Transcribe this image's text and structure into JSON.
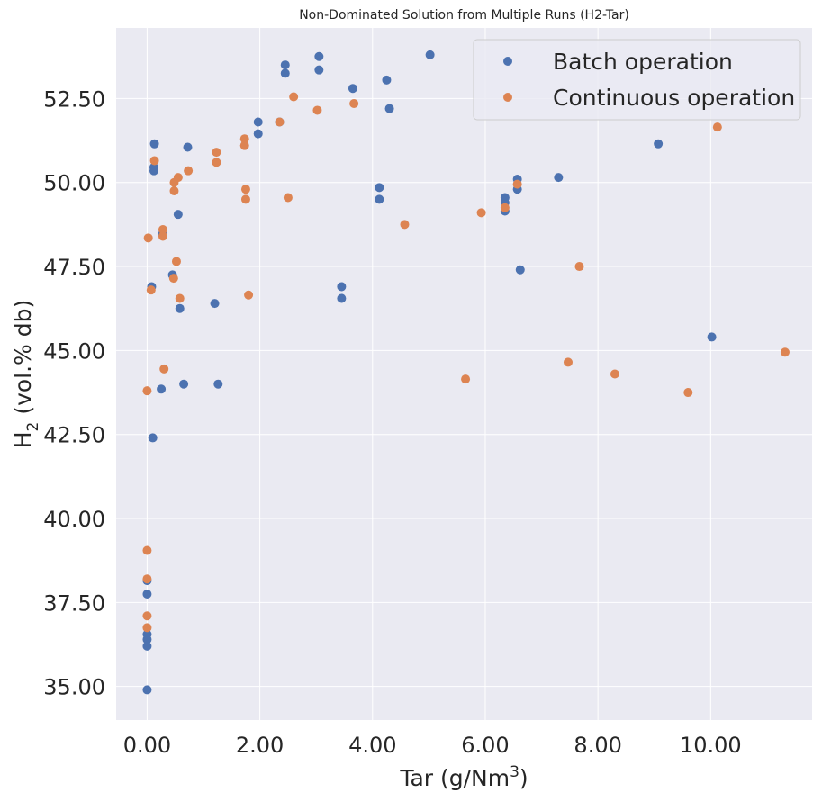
{
  "chart_data": {
    "type": "scatter",
    "title": "Non-Dominated Solution from Multiple Runs (H2-Tar)",
    "xlabel": {
      "base": "Tar (g/Nm",
      "sup": "3",
      "tail": ")"
    },
    "ylabel": {
      "base": "H",
      "sub": "2",
      "tail": " (vol.% db)"
    },
    "xlim": [
      -0.55,
      11.8
    ],
    "ylim": [
      34.0,
      54.6
    ],
    "xticks": [
      0,
      2,
      4,
      6,
      8,
      10
    ],
    "xtick_labels": [
      "0.00",
      "2.00",
      "4.00",
      "6.00",
      "8.00",
      "10.00"
    ],
    "yticks": [
      35,
      37.5,
      40,
      42.5,
      45,
      47.5,
      50,
      52.5
    ],
    "ytick_labels": [
      "35.00",
      "37.50",
      "40.00",
      "42.50",
      "45.00",
      "47.50",
      "50.00",
      "52.50"
    ],
    "grid": true,
    "legend_position": "top-right",
    "series": [
      {
        "name": "Batch operation",
        "color": "#4c72b0",
        "points": [
          [
            0.0,
            34.9
          ],
          [
            0.0,
            36.2
          ],
          [
            0.0,
            36.4
          ],
          [
            0.0,
            36.55
          ],
          [
            0.0,
            37.75
          ],
          [
            0.0,
            38.15
          ],
          [
            0.08,
            46.9
          ],
          [
            0.1,
            42.4
          ],
          [
            0.12,
            50.35
          ],
          [
            0.12,
            50.45
          ],
          [
            0.13,
            51.15
          ],
          [
            0.25,
            43.85
          ],
          [
            0.28,
            48.5
          ],
          [
            0.28,
            48.45
          ],
          [
            0.45,
            47.25
          ],
          [
            0.55,
            49.05
          ],
          [
            0.58,
            46.25
          ],
          [
            0.65,
            44.0
          ],
          [
            0.72,
            51.05
          ],
          [
            1.2,
            46.4
          ],
          [
            1.26,
            44.0
          ],
          [
            1.97,
            51.8
          ],
          [
            1.97,
            51.45
          ],
          [
            2.35,
            51.8
          ],
          [
            2.45,
            53.5
          ],
          [
            2.45,
            53.25
          ],
          [
            3.05,
            53.75
          ],
          [
            3.05,
            53.35
          ],
          [
            3.45,
            46.9
          ],
          [
            3.45,
            46.55
          ],
          [
            3.65,
            52.8
          ],
          [
            4.12,
            49.85
          ],
          [
            4.12,
            49.5
          ],
          [
            4.25,
            53.05
          ],
          [
            4.3,
            52.2
          ],
          [
            5.02,
            53.8
          ],
          [
            6.35,
            49.55
          ],
          [
            6.35,
            49.4
          ],
          [
            6.35,
            49.15
          ],
          [
            6.57,
            50.1
          ],
          [
            6.57,
            49.8
          ],
          [
            6.62,
            47.4
          ],
          [
            7.3,
            50.15
          ],
          [
            9.07,
            51.15
          ],
          [
            10.02,
            45.4
          ]
        ]
      },
      {
        "name": "Continuous operation",
        "color": "#dd8452",
        "points": [
          [
            0.0,
            43.8
          ],
          [
            0.02,
            48.35
          ],
          [
            0.0,
            39.05
          ],
          [
            0.0,
            38.2
          ],
          [
            0.0,
            37.1
          ],
          [
            0.0,
            36.75
          ],
          [
            0.07,
            46.8
          ],
          [
            0.13,
            50.65
          ],
          [
            0.28,
            48.6
          ],
          [
            0.28,
            48.4
          ],
          [
            0.3,
            44.45
          ],
          [
            0.47,
            47.15
          ],
          [
            0.48,
            50.0
          ],
          [
            0.48,
            49.75
          ],
          [
            0.52,
            47.65
          ],
          [
            0.55,
            50.15
          ],
          [
            0.58,
            46.55
          ],
          [
            0.73,
            50.35
          ],
          [
            1.23,
            50.9
          ],
          [
            1.23,
            50.6
          ],
          [
            1.73,
            51.3
          ],
          [
            1.73,
            51.1
          ],
          [
            1.75,
            49.8
          ],
          [
            1.75,
            49.5
          ],
          [
            1.8,
            46.65
          ],
          [
            2.35,
            51.8
          ],
          [
            2.5,
            49.55
          ],
          [
            2.6,
            52.55
          ],
          [
            3.02,
            52.15
          ],
          [
            3.67,
            52.35
          ],
          [
            4.57,
            48.75
          ],
          [
            5.65,
            44.15
          ],
          [
            5.93,
            49.1
          ],
          [
            6.35,
            49.25
          ],
          [
            6.57,
            49.95
          ],
          [
            7.47,
            44.65
          ],
          [
            7.67,
            47.5
          ],
          [
            8.3,
            44.3
          ],
          [
            9.6,
            43.75
          ],
          [
            10.12,
            51.65
          ],
          [
            11.32,
            44.95
          ]
        ]
      }
    ]
  }
}
